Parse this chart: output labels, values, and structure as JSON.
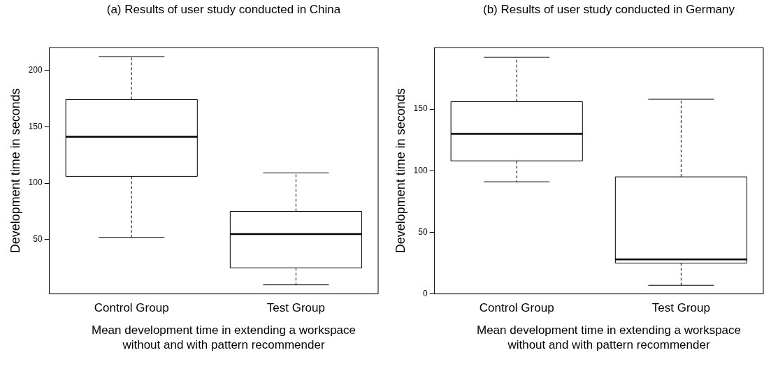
{
  "chart_data": [
    {
      "type": "box",
      "title": "(a) Results of user study conducted in China",
      "xlabel": "Mean development time in extending a workspace without and with pattern recommender",
      "ylabel": "Development time in seconds",
      "categories": [
        "Control Group",
        "Test Group"
      ],
      "boxes": [
        {
          "low": 52,
          "q1": 106,
          "median": 141,
          "q3": 174,
          "high": 212
        },
        {
          "low": 10,
          "q1": 25,
          "median": 55,
          "q3": 75,
          "high": 109
        }
      ],
      "ylim": [
        2,
        220
      ],
      "yticks": [
        50,
        100,
        150,
        200
      ]
    },
    {
      "type": "box",
      "title": "(b) Results of user study conducted in Germany",
      "xlabel": "Mean development time in extending a workspace without and with pattern recommender",
      "ylabel": "Development time in seconds",
      "categories": [
        "Control Group",
        "Test Group"
      ],
      "boxes": [
        {
          "low": 91,
          "q1": 108,
          "median": 130,
          "q3": 156,
          "high": 192
        },
        {
          "low": 7,
          "q1": 25,
          "median": 28,
          "q3": 95,
          "high": 158
        }
      ],
      "ylim": [
        0,
        200
      ],
      "yticks": [
        0,
        50,
        100,
        150
      ]
    }
  ]
}
